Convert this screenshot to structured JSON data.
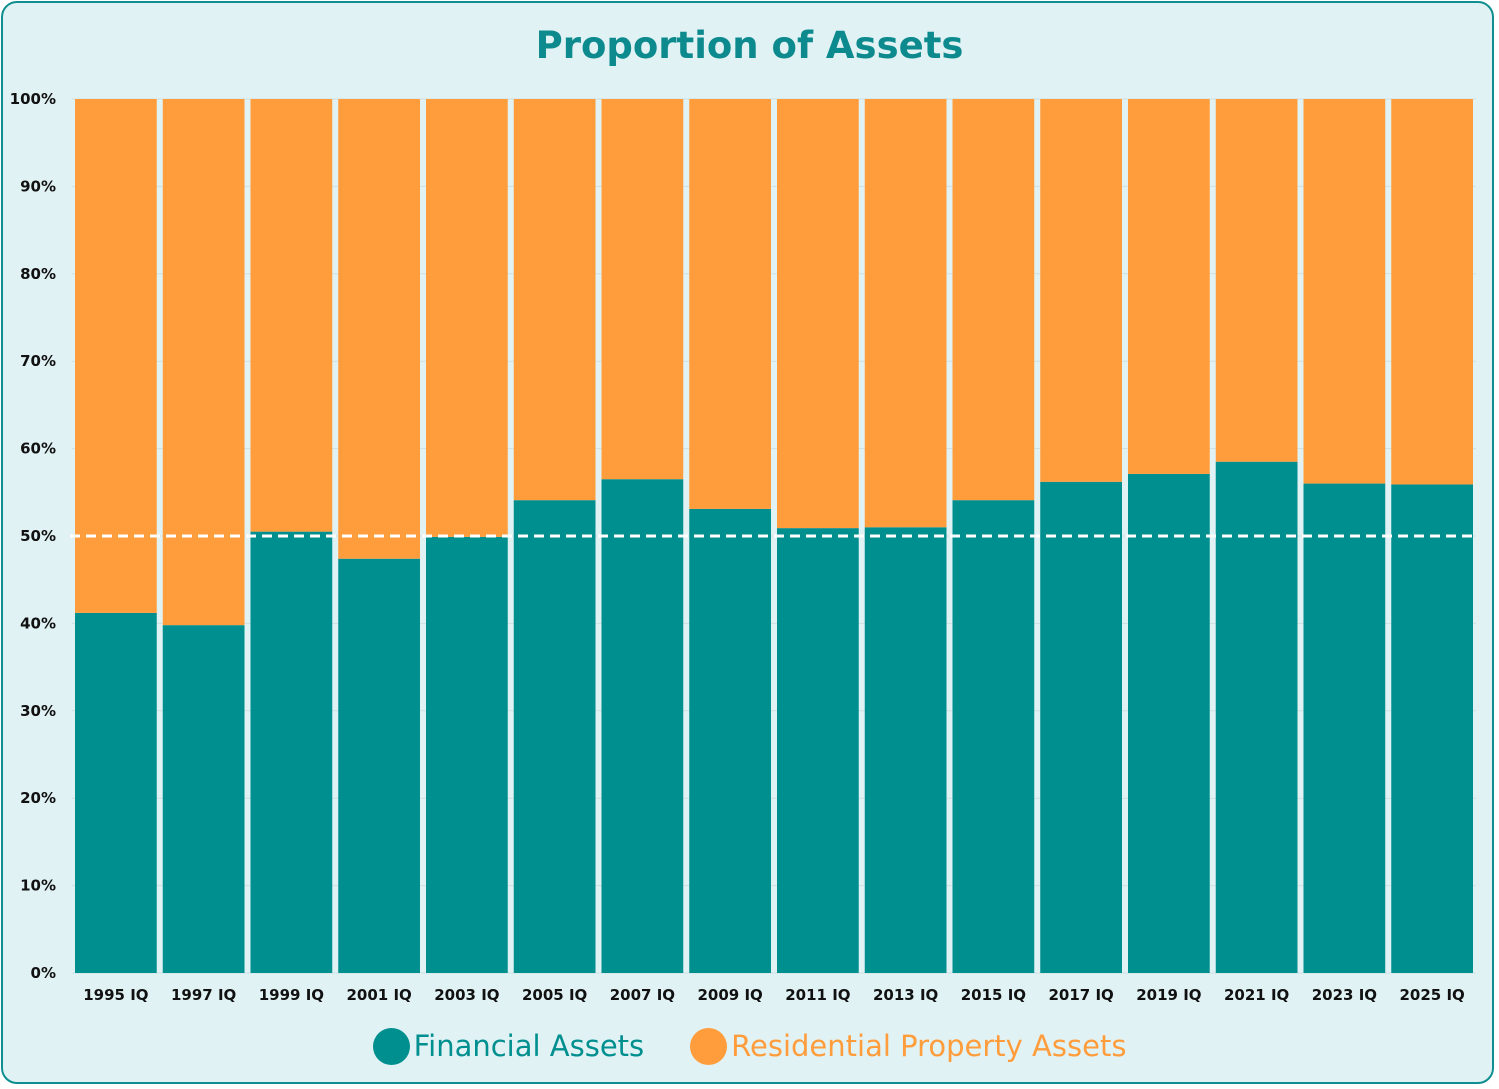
{
  "chart_data": {
    "type": "bar",
    "stacked": "percent",
    "title": "Proportion of Assets",
    "xlabel": "",
    "ylabel": "",
    "ylim": [
      0,
      100
    ],
    "yticks": [
      "0%",
      "10%",
      "20%",
      "30%",
      "40%",
      "50%",
      "60%",
      "70%",
      "80%",
      "90%",
      "100%"
    ],
    "categories": [
      "1995 IQ",
      "1997 IQ",
      "1999 IQ",
      "2001 IQ",
      "2003 IQ",
      "2005 IQ",
      "2007 IQ",
      "2009 IQ",
      "2011 IQ",
      "2013 IQ",
      "2015 IQ",
      "2017 IQ",
      "2019 IQ",
      "2021 IQ",
      "2023 IQ",
      "2025 IQ"
    ],
    "series": [
      {
        "name": "Financial Assets",
        "color": "#008f8f",
        "values": [
          41.2,
          39.8,
          50.5,
          47.4,
          49.9,
          54.1,
          56.5,
          53.1,
          50.9,
          51.0,
          54.1,
          56.2,
          57.1,
          58.5,
          56.0,
          55.9
        ]
      },
      {
        "name": "Residential Property Assets",
        "color": "#ff9d3d",
        "values": [
          58.8,
          60.2,
          49.5,
          52.6,
          50.1,
          45.9,
          43.5,
          46.9,
          49.1,
          49.0,
          45.9,
          43.8,
          42.9,
          41.5,
          44.0,
          44.1
        ]
      }
    ],
    "reference_line": {
      "value": 50,
      "style": "dashed",
      "color": "#ffffff"
    },
    "grid": true,
    "legend_position": "bottom"
  }
}
